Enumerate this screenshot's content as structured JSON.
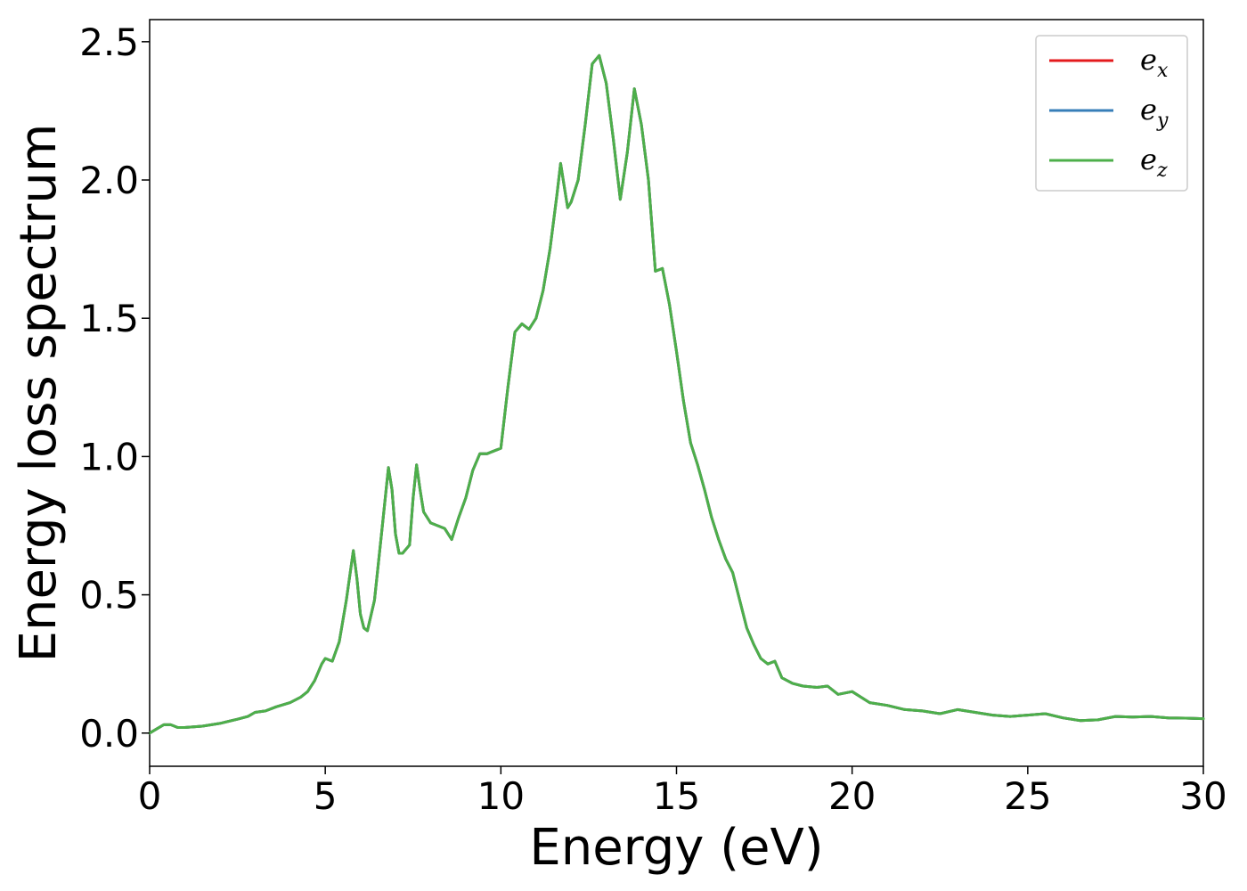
{
  "chart_data": {
    "type": "line",
    "xlabel": "Energy (eV)",
    "ylabel": "Energy loss spectrum",
    "xlim": [
      0,
      30
    ],
    "ylim": [
      -0.12,
      2.58
    ],
    "xticks": [
      0,
      5,
      10,
      15,
      20,
      25,
      30
    ],
    "xtick_labels": [
      "0",
      "5",
      "10",
      "15",
      "20",
      "25",
      "30"
    ],
    "yticks": [
      0.0,
      0.5,
      1.0,
      1.5,
      2.0,
      2.5
    ],
    "ytick_labels": [
      "0.0",
      "0.5",
      "1.0",
      "1.5",
      "2.0",
      "2.5"
    ],
    "grid": false,
    "legend_position": "top-right",
    "x": [
      0.0,
      0.2,
      0.4,
      0.6,
      0.8,
      1.0,
      1.5,
      2.0,
      2.5,
      2.8,
      3.0,
      3.3,
      3.6,
      4.0,
      4.3,
      4.5,
      4.7,
      4.9,
      5.0,
      5.2,
      5.4,
      5.6,
      5.8,
      5.9,
      6.0,
      6.1,
      6.2,
      6.4,
      6.6,
      6.8,
      6.9,
      7.0,
      7.1,
      7.2,
      7.4,
      7.5,
      7.6,
      7.7,
      7.8,
      8.0,
      8.2,
      8.4,
      8.6,
      8.8,
      9.0,
      9.2,
      9.4,
      9.6,
      9.8,
      10.0,
      10.2,
      10.4,
      10.6,
      10.8,
      11.0,
      11.2,
      11.4,
      11.6,
      11.7,
      11.8,
      11.9,
      12.0,
      12.2,
      12.4,
      12.6,
      12.8,
      13.0,
      13.2,
      13.4,
      13.6,
      13.8,
      14.0,
      14.2,
      14.4,
      14.6,
      14.8,
      15.0,
      15.2,
      15.4,
      15.6,
      15.8,
      16.0,
      16.2,
      16.4,
      16.6,
      16.8,
      17.0,
      17.2,
      17.4,
      17.6,
      17.8,
      18.0,
      18.3,
      18.6,
      19.0,
      19.3,
      19.6,
      20.0,
      20.5,
      21.0,
      21.5,
      22.0,
      22.5,
      23.0,
      23.5,
      24.0,
      24.5,
      25.0,
      25.5,
      26.0,
      26.5,
      27.0,
      27.5,
      28.0,
      28.5,
      29.0,
      29.5,
      30.0
    ],
    "series": [
      {
        "name": "e",
        "subscript": "x",
        "color": "#e41a1c",
        "y": [
          0.0,
          0.015,
          0.03,
          0.03,
          0.02,
          0.02,
          0.025,
          0.035,
          0.05,
          0.06,
          0.075,
          0.08,
          0.095,
          0.11,
          0.13,
          0.15,
          0.19,
          0.25,
          0.27,
          0.26,
          0.33,
          0.48,
          0.66,
          0.56,
          0.43,
          0.38,
          0.37,
          0.48,
          0.72,
          0.96,
          0.88,
          0.72,
          0.65,
          0.65,
          0.68,
          0.85,
          0.97,
          0.88,
          0.8,
          0.76,
          0.75,
          0.74,
          0.7,
          0.78,
          0.85,
          0.95,
          1.01,
          1.01,
          1.02,
          1.03,
          1.25,
          1.45,
          1.48,
          1.46,
          1.5,
          1.6,
          1.75,
          1.95,
          2.06,
          1.98,
          1.9,
          1.92,
          2.0,
          2.2,
          2.42,
          2.45,
          2.35,
          2.15,
          1.93,
          2.1,
          2.33,
          2.2,
          2.0,
          1.67,
          1.68,
          1.55,
          1.38,
          1.2,
          1.05,
          0.97,
          0.88,
          0.78,
          0.7,
          0.63,
          0.58,
          0.48,
          0.38,
          0.32,
          0.27,
          0.25,
          0.26,
          0.2,
          0.18,
          0.17,
          0.165,
          0.17,
          0.14,
          0.15,
          0.11,
          0.1,
          0.085,
          0.08,
          0.07,
          0.085,
          0.075,
          0.065,
          0.06,
          0.065,
          0.07,
          0.055,
          0.045,
          0.048,
          0.06,
          0.058,
          0.06,
          0.055,
          0.054,
          0.052
        ]
      },
      {
        "name": "e",
        "subscript": "y",
        "color": "#377eb8",
        "y": [
          0.0,
          0.015,
          0.03,
          0.03,
          0.02,
          0.02,
          0.025,
          0.035,
          0.05,
          0.06,
          0.075,
          0.08,
          0.095,
          0.11,
          0.13,
          0.15,
          0.19,
          0.25,
          0.27,
          0.26,
          0.33,
          0.48,
          0.66,
          0.56,
          0.43,
          0.38,
          0.37,
          0.48,
          0.72,
          0.96,
          0.88,
          0.72,
          0.65,
          0.65,
          0.68,
          0.85,
          0.97,
          0.88,
          0.8,
          0.76,
          0.75,
          0.74,
          0.7,
          0.78,
          0.85,
          0.95,
          1.01,
          1.01,
          1.02,
          1.03,
          1.25,
          1.45,
          1.48,
          1.46,
          1.5,
          1.6,
          1.75,
          1.95,
          2.06,
          1.98,
          1.9,
          1.92,
          2.0,
          2.2,
          2.42,
          2.45,
          2.35,
          2.15,
          1.93,
          2.1,
          2.33,
          2.2,
          2.0,
          1.67,
          1.68,
          1.55,
          1.38,
          1.2,
          1.05,
          0.97,
          0.88,
          0.78,
          0.7,
          0.63,
          0.58,
          0.48,
          0.38,
          0.32,
          0.27,
          0.25,
          0.26,
          0.2,
          0.18,
          0.17,
          0.165,
          0.17,
          0.14,
          0.15,
          0.11,
          0.1,
          0.085,
          0.08,
          0.07,
          0.085,
          0.075,
          0.065,
          0.06,
          0.065,
          0.07,
          0.055,
          0.045,
          0.048,
          0.06,
          0.058,
          0.06,
          0.055,
          0.054,
          0.052
        ]
      },
      {
        "name": "e",
        "subscript": "z",
        "color": "#4daf4a",
        "y": [
          0.0,
          0.015,
          0.03,
          0.03,
          0.02,
          0.02,
          0.025,
          0.035,
          0.05,
          0.06,
          0.075,
          0.08,
          0.095,
          0.11,
          0.13,
          0.15,
          0.19,
          0.25,
          0.27,
          0.26,
          0.33,
          0.48,
          0.66,
          0.56,
          0.43,
          0.38,
          0.37,
          0.48,
          0.72,
          0.96,
          0.88,
          0.72,
          0.65,
          0.65,
          0.68,
          0.85,
          0.97,
          0.88,
          0.8,
          0.76,
          0.75,
          0.74,
          0.7,
          0.78,
          0.85,
          0.95,
          1.01,
          1.01,
          1.02,
          1.03,
          1.25,
          1.45,
          1.48,
          1.46,
          1.5,
          1.6,
          1.75,
          1.95,
          2.06,
          1.98,
          1.9,
          1.92,
          2.0,
          2.2,
          2.42,
          2.45,
          2.35,
          2.15,
          1.93,
          2.1,
          2.33,
          2.2,
          2.0,
          1.67,
          1.68,
          1.55,
          1.38,
          1.2,
          1.05,
          0.97,
          0.88,
          0.78,
          0.7,
          0.63,
          0.58,
          0.48,
          0.38,
          0.32,
          0.27,
          0.25,
          0.26,
          0.2,
          0.18,
          0.17,
          0.165,
          0.17,
          0.14,
          0.15,
          0.11,
          0.1,
          0.085,
          0.08,
          0.07,
          0.085,
          0.075,
          0.065,
          0.06,
          0.065,
          0.07,
          0.055,
          0.045,
          0.048,
          0.06,
          0.058,
          0.06,
          0.055,
          0.054,
          0.052
        ]
      }
    ]
  }
}
